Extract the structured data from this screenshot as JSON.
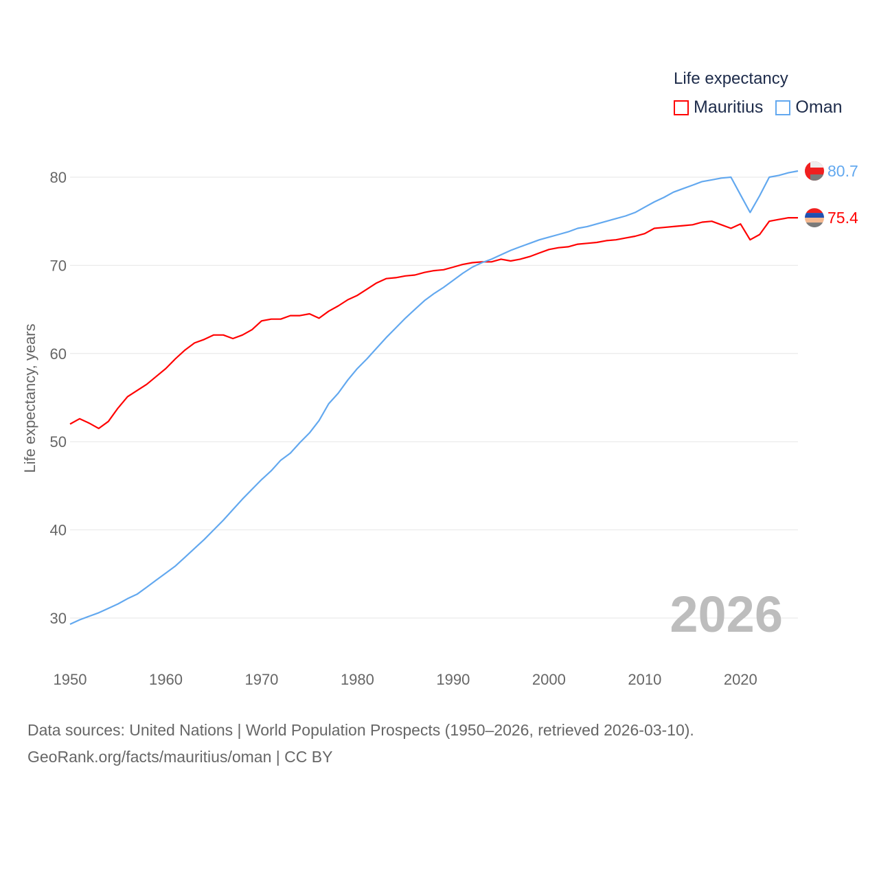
{
  "chart_data": {
    "type": "line",
    "title": "",
    "legend_title": "Life expectancy",
    "legend_position": "top-right",
    "ylabel": "Life expectancy, years",
    "xlabel": "",
    "xlim": [
      1950,
      2026
    ],
    "ylim": [
      25,
      85
    ],
    "x_ticks": [
      1950,
      1960,
      1970,
      1980,
      1990,
      2000,
      2010,
      2020
    ],
    "y_ticks": [
      30,
      40,
      50,
      60,
      70,
      80
    ],
    "grid": "horizontal",
    "year_label": "2026",
    "x_start": 1950,
    "series": [
      {
        "name": "Mauritius",
        "color": "#ff0000",
        "end_label": "75.4",
        "values": [
          52.0,
          52.6,
          52.1,
          51.5,
          52.3,
          53.8,
          55.1,
          55.8,
          56.5,
          57.4,
          58.3,
          59.4,
          60.4,
          61.2,
          61.6,
          62.1,
          62.1,
          61.7,
          62.1,
          62.7,
          63.7,
          63.9,
          63.9,
          64.3,
          64.3,
          64.5,
          64.0,
          64.8,
          65.4,
          66.1,
          66.6,
          67.3,
          68.0,
          68.5,
          68.6,
          68.8,
          68.9,
          69.2,
          69.4,
          69.5,
          69.8,
          70.1,
          70.3,
          70.4,
          70.4,
          70.7,
          70.5,
          70.7,
          71.0,
          71.4,
          71.8,
          72.0,
          72.1,
          72.4,
          72.5,
          72.6,
          72.8,
          72.9,
          73.1,
          73.3,
          73.6,
          74.2,
          74.3,
          74.4,
          74.5,
          74.6,
          74.9,
          75.0,
          74.6,
          74.2,
          74.7,
          72.9,
          73.5,
          75.0,
          75.2,
          75.4,
          75.4
        ]
      },
      {
        "name": "Oman",
        "color": "#62a8ef",
        "end_label": "80.7",
        "values": [
          29.3,
          29.8,
          30.2,
          30.6,
          31.1,
          31.6,
          32.2,
          32.7,
          33.5,
          34.3,
          35.1,
          35.9,
          36.9,
          37.9,
          38.9,
          40.0,
          41.1,
          42.3,
          43.5,
          44.6,
          45.7,
          46.7,
          47.9,
          48.7,
          49.9,
          51.0,
          52.4,
          54.3,
          55.5,
          57.0,
          58.3,
          59.4,
          60.6,
          61.8,
          62.9,
          64.0,
          65.0,
          66.0,
          66.8,
          67.5,
          68.3,
          69.1,
          69.8,
          70.3,
          70.7,
          71.2,
          71.7,
          72.1,
          72.5,
          72.9,
          73.2,
          73.5,
          73.8,
          74.2,
          74.4,
          74.7,
          75.0,
          75.3,
          75.6,
          76.0,
          76.6,
          77.2,
          77.7,
          78.3,
          78.7,
          79.1,
          79.5,
          79.7,
          79.9,
          80.0,
          78.0,
          76.0,
          77.9,
          80.0,
          80.2,
          80.5,
          80.7
        ]
      }
    ]
  },
  "footer": {
    "line1": "Data sources: United Nations | World Population Prospects (1950–2026, retrieved 2026-03-10).",
    "line2": "GeoRank.org/facts/mauritius/oman | CC BY"
  }
}
